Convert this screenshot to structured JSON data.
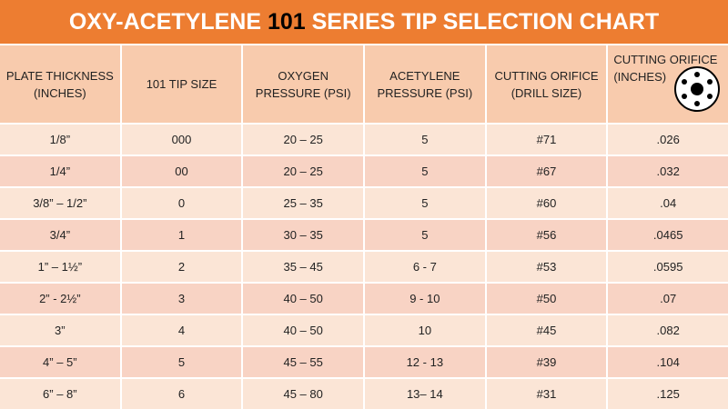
{
  "header": {
    "title": {
      "before": "OXY-ACETYLENE ",
      "highlight": "101",
      "after": " SERIES TIP SELECTION CHART"
    }
  },
  "table": {
    "columns": [
      [
        "PLATE THICKNESS",
        "(INCHES)"
      ],
      [
        "101 TIP SIZE"
      ],
      [
        "OXYGEN",
        "PRESSURE (PSI)"
      ],
      [
        "ACETYLENE",
        "PRESSURE (PSI)"
      ],
      [
        "CUTTING ORIFICE",
        "(DRILL SIZE)"
      ],
      [
        "CUTTING ORIFICE",
        "(INCHES)"
      ]
    ],
    "rows": [
      [
        "1/8”",
        "000",
        "20 – 25",
        "5",
        "#71",
        ".026"
      ],
      [
        "1/4”",
        "00",
        "20 – 25",
        "5",
        "#67",
        ".032"
      ],
      [
        "3/8” – 1/2”",
        "0",
        "25 – 35",
        "5",
        "#60",
        ".04"
      ],
      [
        "3/4”",
        "1",
        "30 – 35",
        "5",
        "#56",
        ".0465"
      ],
      [
        "1” – 1½”",
        "2",
        "35 – 45",
        "6 - 7",
        "#53",
        ".0595"
      ],
      [
        "2” - 2½”",
        "3",
        "40 – 50",
        "9 - 10",
        "#50",
        ".07"
      ],
      [
        "3”",
        "4",
        "40 – 50",
        "10",
        "#45",
        ".082"
      ],
      [
        "4” – 5”",
        "5",
        "45 – 55",
        "12 - 13",
        "#39",
        ".104"
      ],
      [
        "6” – 8”",
        "6",
        "45 – 80",
        "13– 14",
        "#31",
        ".125"
      ]
    ]
  }
}
